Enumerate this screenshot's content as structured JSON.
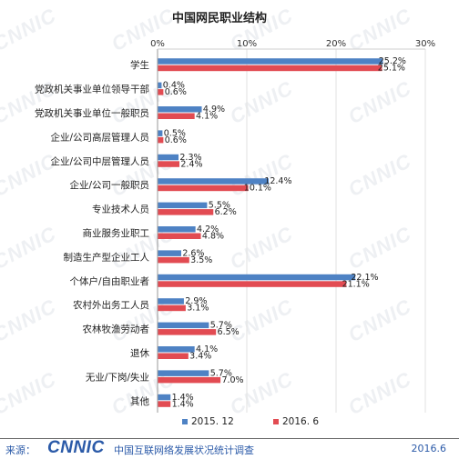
{
  "watermark_text": "CNNIC",
  "footer": {
    "source_label": "来源：",
    "logo_text": "CNNIC",
    "org": "中国互联网络发展状况统计调查",
    "date": "2016.6"
  },
  "chart_data": {
    "type": "bar",
    "orientation": "horizontal",
    "title": "中国网民职业结构",
    "categories": [
      "学生",
      "党政机关事业单位领导干部",
      "党政机关事业单位一般职员",
      "企业/公司高层管理人员",
      "企业/公司中层管理人员",
      "企业/公司一般职员",
      "专业技术人员",
      "商业服务业职工",
      "制造生产型企业工人",
      "个体户/自由职业者",
      "农村外出务工人员",
      "农林牧渔劳动者",
      "退休",
      "无业/下岗/失业",
      "其他"
    ],
    "series": [
      {
        "name": "2015. 12",
        "color": "#4e82c4",
        "values": [
          25.2,
          0.4,
          4.9,
          0.5,
          2.3,
          12.4,
          5.5,
          4.2,
          2.6,
          22.1,
          2.9,
          5.7,
          4.1,
          5.7,
          1.4
        ]
      },
      {
        "name": "2016. 6",
        "color": "#e24b52",
        "values": [
          25.1,
          0.6,
          4.1,
          0.6,
          2.4,
          10.1,
          6.2,
          4.8,
          3.5,
          21.1,
          3.1,
          6.5,
          3.4,
          7.0,
          1.4
        ]
      }
    ],
    "x_ticks": [
      "0%",
      "10%",
      "20%",
      "30%"
    ],
    "xlim": [
      0,
      30
    ],
    "value_suffix": "%",
    "grid": true,
    "legend_position": "bottom"
  }
}
